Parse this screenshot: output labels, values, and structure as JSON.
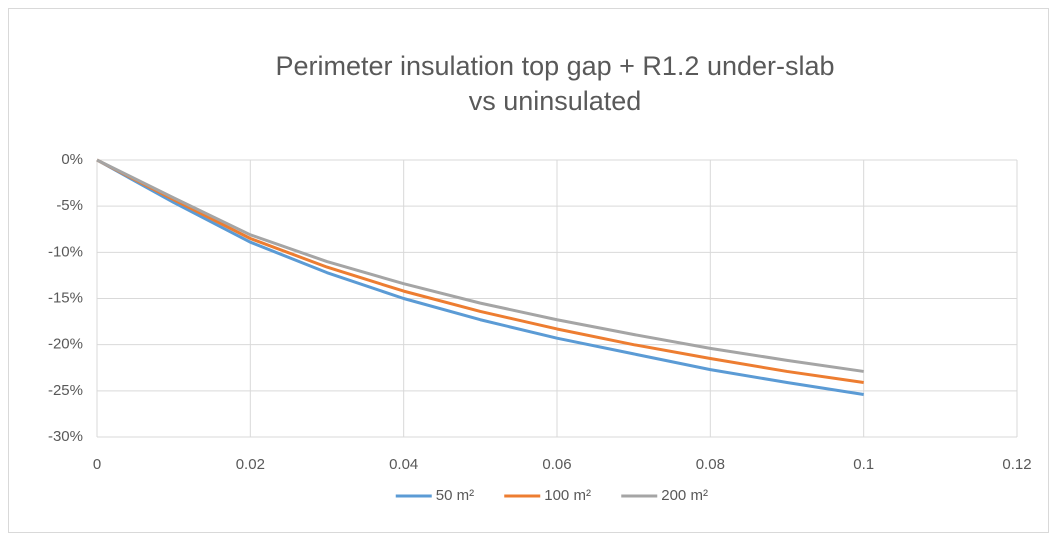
{
  "chart_data": {
    "type": "line",
    "title": [
      "Perimeter insulation top gap + R1.2 under-slab",
      "vs uninsulated"
    ],
    "x": [
      0,
      0.01,
      0.02,
      0.03,
      0.04,
      0.05,
      0.06,
      0.07,
      0.08,
      0.09,
      0.1
    ],
    "series": [
      {
        "name": "50 m²",
        "color": "#5b9bd5",
        "values": [
          0,
          -4.6,
          -8.9,
          -12.2,
          -15.0,
          -17.3,
          -19.3,
          -21.0,
          -22.7,
          -24.1,
          -25.4
        ]
      },
      {
        "name": "100 m²",
        "color": "#ed7d31",
        "values": [
          0,
          -4.3,
          -8.5,
          -11.6,
          -14.2,
          -16.4,
          -18.3,
          -20.0,
          -21.5,
          -22.9,
          -24.1
        ]
      },
      {
        "name": "200 m²",
        "color": "#a5a5a5",
        "values": [
          0,
          -4.1,
          -8.1,
          -11.0,
          -13.4,
          -15.5,
          -17.3,
          -18.9,
          -20.4,
          -21.7,
          -22.9
        ]
      }
    ],
    "xlim": [
      0,
      0.12
    ],
    "xticks": [
      0,
      0.02,
      0.04,
      0.06,
      0.08,
      0.1,
      0.12
    ],
    "ylim": [
      -30,
      0
    ],
    "yticks": [
      {
        "value": 0,
        "label": "0%"
      },
      {
        "value": -5,
        "label": "-5%"
      },
      {
        "value": -10,
        "label": "-10%"
      },
      {
        "value": -15,
        "label": "-15%"
      },
      {
        "value": -20,
        "label": "-20%"
      },
      {
        "value": -25,
        "label": "-25%"
      },
      {
        "value": -30,
        "label": "-30%"
      }
    ],
    "grid": true,
    "legend": "bottom"
  }
}
